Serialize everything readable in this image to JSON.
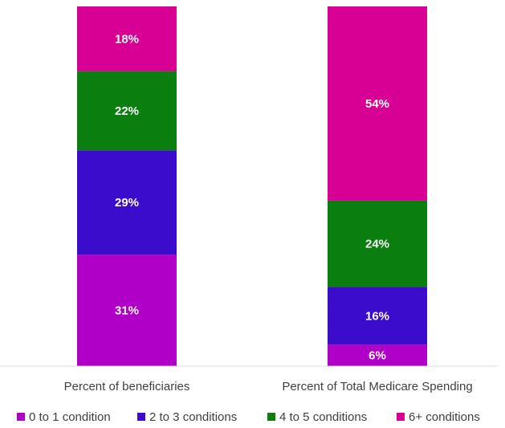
{
  "chart_data": {
    "type": "bar",
    "stacked": true,
    "categories": [
      "Percent of beneficiaries",
      "Percent of Total Medicare Spending"
    ],
    "series": [
      {
        "name": "0 to 1 condition",
        "color": "#b000c8",
        "values": [
          31,
          6
        ],
        "labels": [
          "31%",
          "6%"
        ]
      },
      {
        "name": "2 to 3 conditions",
        "color": "#3c0ccc",
        "values": [
          29,
          16
        ],
        "labels": [
          "29%",
          "16%"
        ]
      },
      {
        "name": "4 to 5 conditions",
        "color": "#0b7e10",
        "values": [
          22,
          24
        ],
        "labels": [
          "22%",
          "24%"
        ]
      },
      {
        "name": "6+ conditions",
        "color": "#d80094",
        "values": [
          18,
          54
        ],
        "labels": [
          "18%",
          "54%"
        ]
      }
    ],
    "ylim": [
      0,
      100
    ],
    "grid": false,
    "legend": "bottom"
  }
}
